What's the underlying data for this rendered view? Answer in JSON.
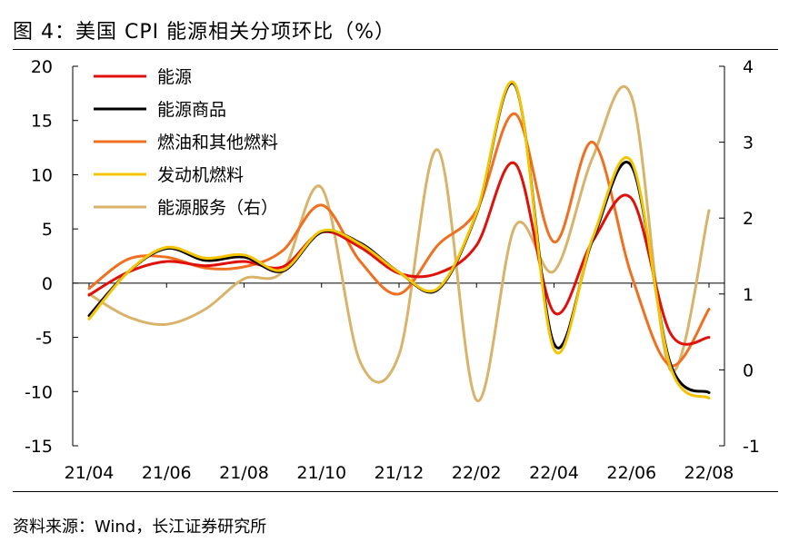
{
  "title": "图 4：美国 CPI 能源相关分项环比（%）",
  "source": "资料来源：Wind，长江证券研究所",
  "chart_data": {
    "type": "line",
    "x": [
      "21/04",
      "21/05",
      "21/06",
      "21/07",
      "21/08",
      "21/09",
      "21/10",
      "21/11",
      "21/12",
      "22/01",
      "22/02",
      "22/03",
      "22/04",
      "22/05",
      "22/06",
      "22/07",
      "22/08"
    ],
    "x_tick_labels": [
      "21/04",
      "21/06",
      "21/08",
      "21/10",
      "21/12",
      "22/02",
      "22/04",
      "22/06",
      "22/08"
    ],
    "ylim_left": [
      -15,
      20
    ],
    "yticks_left": [
      -15,
      -10,
      -5,
      0,
      5,
      10,
      15,
      20
    ],
    "ylim_right": [
      -1,
      4
    ],
    "yticks_right": [
      -1,
      0,
      1,
      2,
      3,
      4
    ],
    "grid": false,
    "legend": "top-left",
    "series": [
      {
        "name": "能源",
        "color": "#e0100a",
        "axis": "left",
        "values": [
          -1.1,
          1.0,
          2.0,
          1.6,
          2.0,
          1.5,
          4.7,
          3.3,
          0.9,
          0.9,
          3.5,
          11.0,
          -2.7,
          3.9,
          7.8,
          -4.6,
          -5.0
        ]
      },
      {
        "name": "能源商品",
        "color": "#000000",
        "axis": "left",
        "values": [
          -3.0,
          1.0,
          3.2,
          2.1,
          2.4,
          1.1,
          4.7,
          3.7,
          1.0,
          -0.6,
          6.4,
          18.2,
          -5.6,
          4.0,
          10.8,
          -7.4,
          -10.1
        ]
      },
      {
        "name": "燃油和其他燃料",
        "color": "#f07020",
        "axis": "left",
        "values": [
          -0.5,
          2.2,
          2.4,
          1.4,
          1.5,
          3.0,
          7.2,
          2.0,
          -1.0,
          3.5,
          6.7,
          15.6,
          3.8,
          13.0,
          0.7,
          -7.6,
          -2.4
        ]
      },
      {
        "name": "发动机燃料",
        "color": "#f5c400",
        "axis": "left",
        "values": [
          -3.3,
          1.0,
          3.3,
          2.3,
          2.6,
          1.2,
          4.8,
          3.6,
          1.0,
          -0.5,
          6.5,
          18.3,
          -6.1,
          4.2,
          11.2,
          -7.7,
          -10.6
        ]
      },
      {
        "name": "能源服务（右）",
        "color": "#d9b36a",
        "axis": "right",
        "values": [
          1.0,
          0.7,
          0.6,
          0.8,
          1.2,
          1.3,
          2.4,
          0.1,
          0.2,
          2.9,
          -0.4,
          1.9,
          1.3,
          2.8,
          3.6,
          0.0,
          2.1
        ]
      }
    ]
  }
}
